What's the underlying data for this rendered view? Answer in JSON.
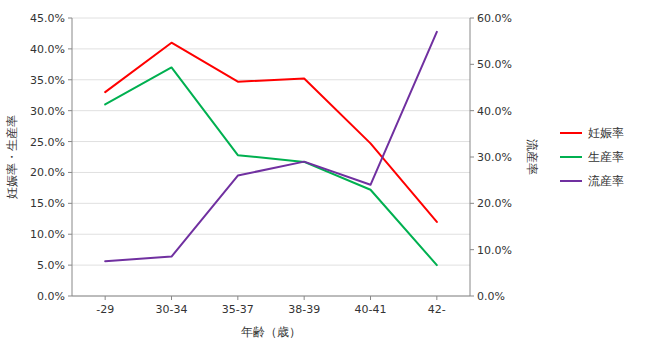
{
  "chart_data": {
    "type": "line",
    "categories": [
      "-29",
      "30-34",
      "35-37",
      "38-39",
      "40-41",
      "42-"
    ],
    "series": [
      {
        "name": "妊娠率",
        "color": "#FF0000",
        "values": [
          0.33,
          0.41,
          0.347,
          0.352,
          0.247,
          0.12
        ]
      },
      {
        "name": "生産率",
        "color": "#00B050",
        "values": [
          0.31,
          0.37,
          0.228,
          0.217,
          0.172,
          0.05
        ]
      },
      {
        "name": "流産率",
        "color": "#7030A0",
        "axis": "y2",
        "values": [
          0.075,
          0.085,
          0.26,
          0.29,
          0.24,
          0.57
        ]
      }
    ],
    "xlabel": "年齢（歳）",
    "ylabel": "妊娠率・生産率",
    "y2label": "流産率",
    "ylim": [
      0.0,
      0.45
    ],
    "yticks": [
      {
        "value": 0.0,
        "label": "0.0%"
      },
      {
        "value": 0.05,
        "label": "5.0%"
      },
      {
        "value": 0.1,
        "label": "10.0%"
      },
      {
        "value": 0.15,
        "label": "15.0%"
      },
      {
        "value": 0.2,
        "label": "20.0%"
      },
      {
        "value": 0.25,
        "label": "25.0%"
      },
      {
        "value": 0.3,
        "label": "30.0%"
      },
      {
        "value": 0.35,
        "label": "35.0%"
      },
      {
        "value": 0.4,
        "label": "40.0%"
      },
      {
        "value": 0.45,
        "label": "45.0%"
      }
    ],
    "y2lim": [
      0.0,
      0.6
    ],
    "y2ticks": [
      {
        "value": 0.0,
        "label": "0.0%"
      },
      {
        "value": 0.1,
        "label": "10.0%"
      },
      {
        "value": 0.2,
        "label": "20.0%"
      },
      {
        "value": 0.3,
        "label": "30.0%"
      },
      {
        "value": 0.4,
        "label": "40.0%"
      },
      {
        "value": 0.5,
        "label": "50.0%"
      },
      {
        "value": 0.6,
        "label": "60.0%"
      }
    ],
    "grid": true,
    "legend": "right"
  }
}
